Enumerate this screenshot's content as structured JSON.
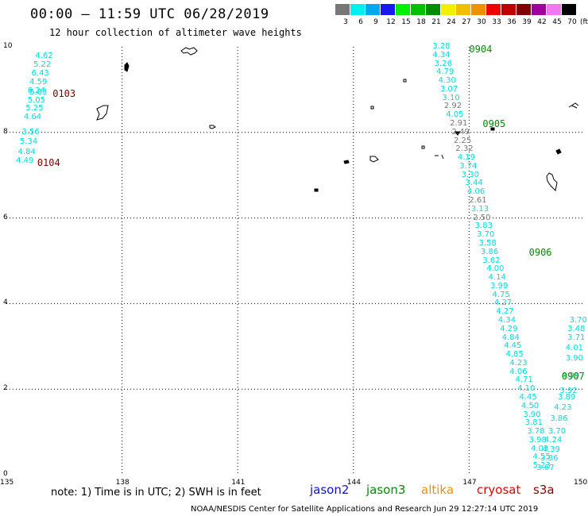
{
  "header": {
    "title": "00:00 – 11:59 UTC 06/28/2019",
    "subtitle": "12 hour collection of altimeter wave heights"
  },
  "color_scale": {
    "unit": "(ft)",
    "entries": [
      {
        "label": "3",
        "color": "#777777"
      },
      {
        "label": "6",
        "color": "#00f0f0"
      },
      {
        "label": "9",
        "color": "#00a8f0"
      },
      {
        "label": "12",
        "color": "#1818f0"
      },
      {
        "label": "15",
        "color": "#00f000"
      },
      {
        "label": "18",
        "color": "#00c000"
      },
      {
        "label": "21",
        "color": "#008c00"
      },
      {
        "label": "24",
        "color": "#f0f000"
      },
      {
        "label": "27",
        "color": "#f0c000"
      },
      {
        "label": "30",
        "color": "#f09000"
      },
      {
        "label": "33",
        "color": "#f00000"
      },
      {
        "label": "36",
        "color": "#c00000"
      },
      {
        "label": "39",
        "color": "#800000"
      },
      {
        "label": "42",
        "color": "#a000a0"
      },
      {
        "label": "45",
        "color": "#f078f0"
      },
      {
        "label": "70",
        "color": "#000000"
      }
    ]
  },
  "map": {
    "lon_range": [
      135,
      150
    ],
    "lat_range": [
      0,
      10
    ],
    "lon_ticks": [
      "135",
      "138",
      "141",
      "144",
      "147",
      "150"
    ],
    "lat_ticks": [
      "0",
      "2",
      "4",
      "6",
      "8",
      "10"
    ],
    "grid": "dotted",
    "land_color": "#000000"
  },
  "tracks": [
    {
      "mission": "jason3",
      "color": "#00dddd",
      "points": [
        {
          "lon": 135.75,
          "lat": 9.78,
          "swh": "4.62"
        },
        {
          "lon": 135.7,
          "lat": 9.57,
          "swh": "5.22"
        },
        {
          "lon": 135.65,
          "lat": 9.37,
          "swh": "6.43"
        },
        {
          "lon": 135.6,
          "lat": 9.17,
          "swh": "4.59"
        },
        {
          "lon": 135.55,
          "lat": 8.97,
          "swh": "6.24"
        },
        {
          "lon": 135.6,
          "lat": 8.92,
          "swh": "5.83"
        },
        {
          "lon": 135.55,
          "lat": 8.74,
          "swh": "5.05"
        },
        {
          "lon": 135.5,
          "lat": 8.55,
          "swh": "5.25"
        },
        {
          "lon": 135.45,
          "lat": 8.35,
          "swh": "4.64"
        },
        {
          "lon": 135.4,
          "lat": 8.0,
          "swh": "3.56"
        },
        {
          "lon": 135.35,
          "lat": 7.78,
          "swh": "5.34"
        },
        {
          "lon": 135.3,
          "lat": 7.54,
          "swh": "4.84"
        },
        {
          "lon": 135.25,
          "lat": 7.32,
          "swh": "4.49"
        }
      ]
    },
    {
      "mission": "jason3",
      "color": "#00dddd",
      "points": [
        {
          "lon": 146.05,
          "lat": 10.0,
          "swh": "3.28"
        },
        {
          "lon": 146.05,
          "lat": 9.8,
          "swh": "4.34"
        },
        {
          "lon": 146.1,
          "lat": 9.6,
          "swh": "3.26"
        },
        {
          "lon": 146.15,
          "lat": 9.4,
          "swh": "4.79"
        },
        {
          "lon": 146.2,
          "lat": 9.2,
          "swh": "4.30"
        },
        {
          "lon": 146.25,
          "lat": 9.0,
          "swh": "3.07"
        },
        {
          "lon": 146.3,
          "lat": 8.8,
          "swh": "3.10"
        },
        {
          "lon": 146.35,
          "lat": 8.6,
          "color": "#777777",
          "swh": "2.92"
        },
        {
          "lon": 146.4,
          "lat": 8.4,
          "swh": "4.05"
        },
        {
          "lon": 146.5,
          "lat": 8.2,
          "color": "#777777",
          "swh": "2.91"
        },
        {
          "lon": 146.55,
          "lat": 8.0,
          "color": "#777777",
          "swh": "2.49"
        },
        {
          "lon": 146.6,
          "lat": 7.8,
          "color": "#777777",
          "swh": "2.25"
        },
        {
          "lon": 146.65,
          "lat": 7.6,
          "color": "#777777",
          "swh": "2.32"
        },
        {
          "lon": 146.7,
          "lat": 7.4,
          "swh": "4.19"
        },
        {
          "lon": 146.75,
          "lat": 7.2,
          "swh": "3.74"
        },
        {
          "lon": 146.8,
          "lat": 7.0,
          "swh": "3.30"
        },
        {
          "lon": 146.9,
          "lat": 6.8,
          "swh": "3.44"
        },
        {
          "lon": 146.95,
          "lat": 6.6,
          "swh": "4.06"
        },
        {
          "lon": 147.0,
          "lat": 6.4,
          "color": "#777777",
          "swh": "2.61"
        },
        {
          "lon": 147.05,
          "lat": 6.2,
          "swh": "3.13"
        },
        {
          "lon": 147.1,
          "lat": 6.0,
          "color": "#777777",
          "swh": "2.50"
        },
        {
          "lon": 147.15,
          "lat": 5.8,
          "swh": "3.83"
        },
        {
          "lon": 147.2,
          "lat": 5.6,
          "swh": "3.70"
        },
        {
          "lon": 147.25,
          "lat": 5.4,
          "swh": "3.58"
        },
        {
          "lon": 147.3,
          "lat": 5.2,
          "swh": "3.86"
        },
        {
          "lon": 147.35,
          "lat": 5.0,
          "swh": "3.62"
        },
        {
          "lon": 147.45,
          "lat": 4.8,
          "swh": "4.00"
        },
        {
          "lon": 147.5,
          "lat": 4.6,
          "swh": "4.14"
        },
        {
          "lon": 147.55,
          "lat": 4.4,
          "swh": "3.99"
        },
        {
          "lon": 147.6,
          "lat": 4.2,
          "swh": "4.75"
        },
        {
          "lon": 147.65,
          "lat": 4.0,
          "swh": "4.27"
        },
        {
          "lon": 147.7,
          "lat": 3.8,
          "swh": "4.27"
        },
        {
          "lon": 147.75,
          "lat": 3.6,
          "swh": "4.34"
        },
        {
          "lon": 147.8,
          "lat": 3.4,
          "swh": "4.29"
        },
        {
          "lon": 147.85,
          "lat": 3.2,
          "swh": "4.84"
        },
        {
          "lon": 147.9,
          "lat": 3.0,
          "swh": "4.45"
        },
        {
          "lon": 147.95,
          "lat": 2.8,
          "swh": "4.85"
        },
        {
          "lon": 148.05,
          "lat": 2.6,
          "swh": "4.23"
        },
        {
          "lon": 148.05,
          "lat": 2.4,
          "swh": "4.06"
        },
        {
          "lon": 148.2,
          "lat": 2.2,
          "swh": "4.71"
        },
        {
          "lon": 148.25,
          "lat": 2.0,
          "swh": "4.10"
        },
        {
          "lon": 148.3,
          "lat": 1.8,
          "swh": "4.45"
        },
        {
          "lon": 148.35,
          "lat": 1.6,
          "swh": "4.50"
        },
        {
          "lon": 148.4,
          "lat": 1.4,
          "swh": "3.90"
        },
        {
          "lon": 148.45,
          "lat": 1.2,
          "swh": "3.81"
        },
        {
          "lon": 148.5,
          "lat": 1.0,
          "swh": "3.78"
        },
        {
          "lon": 148.55,
          "lat": 0.8,
          "swh": "3.98"
        },
        {
          "lon": 148.6,
          "lat": 0.6,
          "swh": "4.03"
        },
        {
          "lon": 148.65,
          "lat": 0.4,
          "swh": "4.55"
        },
        {
          "lon": 148.65,
          "lat": 0.2,
          "swh": "5.23"
        }
      ]
    },
    {
      "mission": "jason3",
      "color": "#00dddd",
      "points": [
        {
          "lon": 149.6,
          "lat": 3.6,
          "swh": "3.70"
        },
        {
          "lon": 149.55,
          "lat": 3.4,
          "swh": "3.48"
        },
        {
          "lon": 149.55,
          "lat": 3.2,
          "swh": "3.71"
        },
        {
          "lon": 149.5,
          "lat": 2.95,
          "swh": "4.01"
        },
        {
          "lon": 149.5,
          "lat": 2.7,
          "swh": "3.90"
        },
        {
          "lon": 149.4,
          "lat": 2.3,
          "swh": "4.09"
        },
        {
          "lon": 149.35,
          "lat": 1.95,
          "swh": "3.92"
        },
        {
          "lon": 149.3,
          "lat": 1.8,
          "swh": "3.89"
        },
        {
          "lon": 149.2,
          "lat": 1.55,
          "swh": "4.23"
        },
        {
          "lon": 149.1,
          "lat": 1.3,
          "swh": "3.86"
        },
        {
          "lon": 149.05,
          "lat": 1.0,
          "swh": "3.70"
        },
        {
          "lon": 148.95,
          "lat": 0.8,
          "swh": "4.24"
        },
        {
          "lon": 148.9,
          "lat": 0.57,
          "swh": "4.39"
        },
        {
          "lon": 148.85,
          "lat": 0.37,
          "swh": "3.86"
        },
        {
          "lon": 148.75,
          "lat": 0.15,
          "swh": "3.67"
        }
      ]
    }
  ],
  "pass_labels": [
    {
      "text": "0103",
      "lon": 136.2,
      "lat": 8.9,
      "color": "#7a0000"
    },
    {
      "text": "0104",
      "lon": 135.8,
      "lat": 7.3,
      "color": "#7a0000"
    },
    {
      "text": "0904",
      "lon": 147.0,
      "lat": 9.95,
      "color": "#008c00"
    },
    {
      "text": "0905",
      "lon": 147.35,
      "lat": 8.2,
      "color": "#008c00"
    },
    {
      "text": "0906",
      "lon": 148.55,
      "lat": 5.2,
      "color": "#008c00"
    },
    {
      "text": "0907",
      "lon": 149.4,
      "lat": 2.3,
      "color": "#008c00"
    }
  ],
  "footer": {
    "note": "note: 1) Time is in UTC; 2) SWH is in feet",
    "missions": [
      {
        "label": "jason2",
        "color": "#1010d0"
      },
      {
        "label": "jason3",
        "color": "#009000"
      },
      {
        "label": "altika",
        "color": "#f09000"
      },
      {
        "label": "cryosat",
        "color": "#e00000"
      },
      {
        "label": "s3a",
        "color": "#8b0000"
      }
    ],
    "credit": "NOAA/NESDIS Center for Satellite Applications and Research    Jun 29 12:27:14 UTC 2019"
  }
}
